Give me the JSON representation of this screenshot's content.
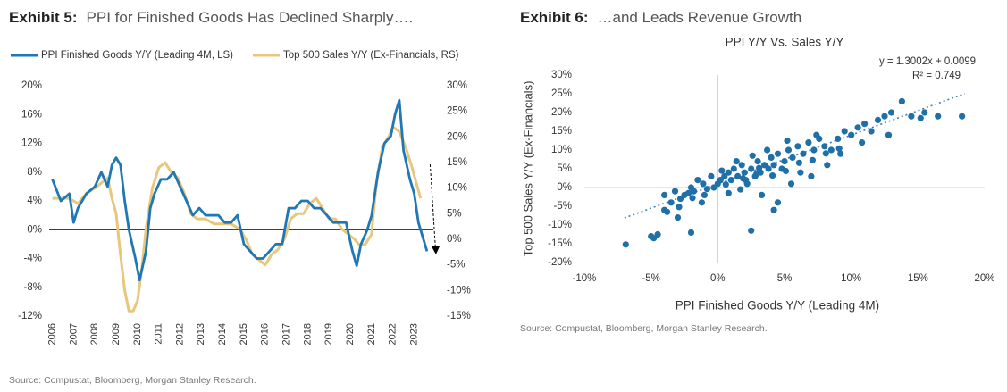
{
  "exhibit5": {
    "label": "Exhibit 5:",
    "title": "PPI for Finished Goods Has Declined Sharply…."
  },
  "exhibit6": {
    "label": "Exhibit 6:",
    "title": "…and Leads Revenue Growth"
  },
  "source5": "Source: Compustat, Bloomberg, Morgan Stanley Research.",
  "source6": "Source: Compustat, Bloomberg, Morgan Stanley Research.",
  "colors": {
    "ppi": "#1f77b4",
    "sales": "#e8c77d",
    "scatter": "#1f6fa8",
    "trend": "#3a7fc0",
    "axis": "#000000",
    "grid": "#cccccc"
  },
  "chart_data": [
    {
      "type": "line",
      "title": "",
      "legend_placement": "top",
      "x_tick_labels": [
        "2006",
        "2007",
        "2008",
        "2009",
        "2010",
        "2011",
        "2012",
        "2013",
        "2014",
        "2015",
        "2016",
        "2017",
        "2018",
        "2019",
        "2020",
        "2021",
        "2022",
        "2023"
      ],
      "y_left_ticks": [
        "20%",
        "16%",
        "12%",
        "8%",
        "4%",
        "0%",
        "-4%",
        "-8%",
        "-12%"
      ],
      "y_right_ticks": [
        "30%",
        "25%",
        "20%",
        "15%",
        "10%",
        "5%",
        "0%",
        "-5%",
        "-10%",
        "-15%"
      ],
      "ylim_left": [
        -12,
        20
      ],
      "ylim_right": [
        -15,
        30
      ],
      "series": [
        {
          "name": "PPI Finished Goods Y/Y (Leading 4M, LS)",
          "axis": "left",
          "x": [
            2006.0,
            2006.4,
            2006.8,
            2007.0,
            2007.2,
            2007.6,
            2008.0,
            2008.3,
            2008.6,
            2008.8,
            2009.0,
            2009.2,
            2009.4,
            2009.6,
            2009.9,
            2010.1,
            2010.4,
            2010.6,
            2010.8,
            2011.1,
            2011.4,
            2011.7,
            2012.0,
            2012.3,
            2012.6,
            2012.9,
            2013.2,
            2013.5,
            2013.8,
            2014.1,
            2014.4,
            2014.7,
            2015.0,
            2015.3,
            2015.6,
            2015.9,
            2016.2,
            2016.5,
            2016.8,
            2017.1,
            2017.4,
            2017.7,
            2018.0,
            2018.3,
            2018.6,
            2018.9,
            2019.2,
            2019.5,
            2019.8,
            2020.1,
            2020.3,
            2020.5,
            2020.8,
            2021.0,
            2021.3,
            2021.6,
            2021.9,
            2022.1,
            2022.3,
            2022.5,
            2022.8,
            2023.0,
            2023.2,
            2023.4,
            2023.6
          ],
          "values": [
            7,
            4,
            5,
            1,
            3,
            5,
            6,
            8,
            6,
            9,
            10,
            9,
            4,
            0,
            -4,
            -7,
            -3,
            3,
            5,
            7,
            7,
            8,
            6,
            4,
            2,
            3,
            2,
            2,
            2,
            1,
            1,
            2,
            -2,
            -3,
            -4,
            -4,
            -3,
            -2,
            -2,
            3,
            3,
            4,
            4,
            3,
            3,
            2,
            1,
            1,
            1,
            -3,
            -5,
            -2,
            0,
            2,
            8,
            12,
            13,
            16,
            18,
            11,
            7,
            5,
            1,
            -1,
            -3
          ]
        },
        {
          "name": "Top 500 Sales Y/Y (Ex-Financials, RS)",
          "axis": "right",
          "x": [
            2006.0,
            2006.4,
            2006.8,
            2007.2,
            2007.6,
            2008.0,
            2008.3,
            2008.6,
            2008.8,
            2009.0,
            2009.2,
            2009.4,
            2009.6,
            2009.8,
            2010.0,
            2010.2,
            2010.4,
            2010.7,
            2011.0,
            2011.3,
            2011.6,
            2011.9,
            2012.2,
            2012.5,
            2012.8,
            2013.2,
            2013.6,
            2014.0,
            2014.4,
            2014.8,
            2015.1,
            2015.4,
            2015.7,
            2016.0,
            2016.3,
            2016.6,
            2016.9,
            2017.2,
            2017.5,
            2017.8,
            2018.1,
            2018.4,
            2018.7,
            2019.0,
            2019.3,
            2019.6,
            2019.9,
            2020.2,
            2020.4,
            2020.7,
            2021.0,
            2021.2,
            2021.5,
            2021.8,
            2022.0,
            2022.3,
            2022.6,
            2022.9,
            2023.1,
            2023.3
          ],
          "values": [
            8,
            8,
            8,
            7,
            9,
            10,
            11,
            12,
            8,
            5,
            -3,
            -10,
            -14,
            -14,
            -12,
            -6,
            2,
            10,
            14,
            15,
            13,
            12,
            9,
            5,
            4,
            4,
            3,
            3,
            3,
            2,
            0,
            -3,
            -4,
            -5,
            -3,
            -2,
            0,
            4,
            5,
            5,
            7,
            8,
            6,
            4,
            4,
            2,
            1,
            0,
            -1,
            -1,
            1,
            10,
            18,
            20,
            22,
            21,
            18,
            14,
            11,
            8
          ]
        }
      ]
    },
    {
      "type": "scatter",
      "title": "PPI Y/Y Vs. Sales Y/Y",
      "xlabel": "PPI Finished Goods Y/Y (Leading 4M)",
      "ylabel": "Top 500 Sales Y/Y (Ex-Financials)",
      "x_ticks": [
        "-10%",
        "-5%",
        "0%",
        "5%",
        "10%",
        "15%",
        "20%"
      ],
      "y_ticks": [
        "30%",
        "25%",
        "20%",
        "15%",
        "10%",
        "5%",
        "0%",
        "-5%",
        "-10%",
        "-15%",
        "-20%"
      ],
      "xlim": [
        -10,
        20
      ],
      "ylim": [
        -20,
        30
      ],
      "trendline": {
        "slope": 1.3002,
        "intercept": 0.0099,
        "equation": "y = 1.3002x + 0.0099",
        "r2": "R² = 0.749"
      },
      "points": [
        [
          -6.9,
          -15.2
        ],
        [
          -5,
          -13
        ],
        [
          -4.5,
          -12.5
        ],
        [
          -4.8,
          -13.5
        ],
        [
          -2,
          -12
        ],
        [
          -3,
          -8
        ],
        [
          -4,
          -6
        ],
        [
          -3.5,
          -4
        ],
        [
          -4,
          -2
        ],
        [
          -3.2,
          -1
        ],
        [
          -2.8,
          -3
        ],
        [
          -2.5,
          -2
        ],
        [
          -2,
          0
        ],
        [
          -1.8,
          -1
        ],
        [
          -1.5,
          2
        ],
        [
          -1.2,
          -4
        ],
        [
          -1,
          -2
        ],
        [
          -0.5,
          3
        ],
        [
          -0.3,
          0
        ],
        [
          0,
          1
        ],
        [
          0.2,
          2
        ],
        [
          0.5,
          3
        ],
        [
          0.8,
          4
        ],
        [
          1,
          2
        ],
        [
          1.2,
          5
        ],
        [
          1.5,
          3
        ],
        [
          1.8,
          6
        ],
        [
          2,
          4
        ],
        [
          2.2,
          1
        ],
        [
          2.5,
          5
        ],
        [
          2.8,
          3
        ],
        [
          3,
          7
        ],
        [
          3.2,
          4
        ],
        [
          3.5,
          6
        ],
        [
          3.8,
          5
        ],
        [
          4,
          8
        ],
        [
          4.2,
          6
        ],
        [
          4.5,
          9
        ],
        [
          4.8,
          5
        ],
        [
          5,
          7
        ],
        [
          5.3,
          10
        ],
        [
          5.6,
          8
        ],
        [
          6,
          11
        ],
        [
          6.4,
          9
        ],
        [
          6.8,
          12
        ],
        [
          7.2,
          10
        ],
        [
          7.6,
          13
        ],
        [
          8,
          11
        ],
        [
          8.5,
          10
        ],
        [
          9,
          13
        ],
        [
          9.5,
          15
        ],
        [
          10,
          14
        ],
        [
          10.5,
          16
        ],
        [
          11,
          17
        ],
        [
          11.5,
          15
        ],
        [
          12,
          18
        ],
        [
          12.5,
          19
        ],
        [
          13,
          20
        ],
        [
          13.8,
          23
        ],
        [
          14.5,
          19
        ],
        [
          15.5,
          20
        ],
        [
          16.5,
          19
        ],
        [
          18.3,
          19
        ],
        [
          2.5,
          -11.5
        ],
        [
          4.2,
          -6
        ],
        [
          4.5,
          -4
        ],
        [
          5.5,
          1
        ],
        [
          7,
          3
        ],
        [
          8.2,
          6
        ],
        [
          9.2,
          9
        ],
        [
          3.3,
          -2
        ],
        [
          1.7,
          -0.5
        ],
        [
          0.8,
          -1.5
        ],
        [
          6.2,
          4
        ],
        [
          10.8,
          12
        ],
        [
          12.8,
          14
        ],
        [
          15.2,
          18.5
        ],
        [
          -2.2,
          -1.5
        ],
        [
          -1.1,
          1
        ],
        [
          0.3,
          4.5
        ],
        [
          1.4,
          7
        ],
        [
          2.6,
          8.5
        ],
        [
          3.7,
          10
        ],
        [
          5.2,
          12.5
        ],
        [
          7.4,
          14
        ],
        [
          2.1,
          2
        ],
        [
          3.1,
          5.2
        ],
        [
          4.1,
          3.2
        ],
        [
          5.1,
          4.4
        ],
        [
          6.1,
          6.6
        ],
        [
          7.1,
          7.3
        ],
        [
          8.1,
          9.1
        ],
        [
          9.1,
          10.4
        ],
        [
          -3.8,
          -6.5
        ],
        [
          -2.9,
          -5.2
        ],
        [
          -1.9,
          -2.8
        ],
        [
          -0.8,
          -0.4
        ],
        [
          0.6,
          0.8
        ],
        [
          1.9,
          2.4
        ],
        [
          2.9,
          3.6
        ]
      ]
    }
  ]
}
